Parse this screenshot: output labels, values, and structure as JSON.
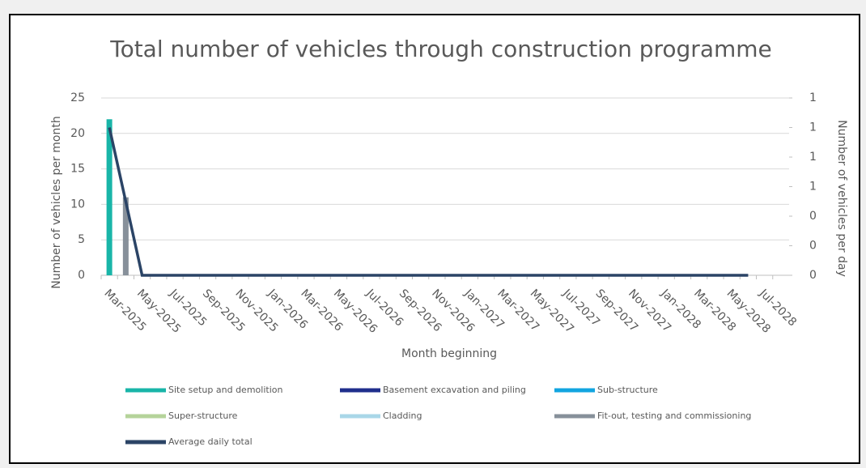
{
  "chart_data": {
    "type": "bar-line",
    "title": "Total number of vehicles through construction programme",
    "y_label": "Number of vehicles per month",
    "y2_label": "Number of vehicles per day",
    "x_label": "Month beginning",
    "categories": [
      "Mar-2025",
      null,
      "May-2025",
      null,
      "Jul-2025",
      null,
      "Sep-2025",
      null,
      "Nov-2025",
      null,
      "Jan-2026",
      null,
      "Mar-2026",
      null,
      "May-2026",
      null,
      "Jul-2026",
      null,
      "Sep-2026",
      null,
      "Nov-2026",
      null,
      "Jan-2027",
      null,
      "Mar-2027",
      null,
      "May-2027",
      null,
      "Jul-2027",
      null,
      "Sep-2027",
      null,
      "Nov-2027",
      null,
      "Jan-2028",
      null,
      "Mar-2028",
      null,
      "May-2028",
      null,
      "Jul-2028",
      null
    ],
    "ylim": [
      0,
      25
    ],
    "yticks": [
      0,
      5,
      10,
      15,
      20,
      25
    ],
    "y2lim": [
      0,
      1.2
    ],
    "y2ticks": [
      0,
      {
        "value": 0.2,
        "label": "0"
      },
      {
        "value": 0.4,
        "label": "0"
      },
      {
        "value": 0.6,
        "label": "1"
      },
      {
        "value": 0.8,
        "label": "1"
      },
      {
        "value": 1.0,
        "label": "1"
      },
      {
        "value": 1.2,
        "label": "1"
      }
    ],
    "grid": true,
    "series": [
      {
        "name": "Site setup and demolition",
        "color": "#19b5a8",
        "kind": "bar",
        "values": [
          22,
          0,
          0,
          0,
          0,
          0,
          0,
          0,
          0,
          0,
          0,
          0,
          0,
          0,
          0,
          0,
          0,
          0,
          0,
          0,
          0,
          0,
          0,
          0,
          0,
          0,
          0,
          0,
          0,
          0,
          0,
          0,
          0,
          0,
          0,
          0,
          0,
          0,
          0,
          0,
          0,
          0
        ]
      },
      {
        "name": "Basement excavation and piling",
        "color": "#1f2e8c",
        "kind": "bar",
        "values": [
          0,
          0,
          0,
          0,
          0,
          0,
          0,
          0,
          0,
          0,
          0,
          0,
          0,
          0,
          0,
          0,
          0,
          0,
          0,
          0,
          0,
          0,
          0,
          0,
          0,
          0,
          0,
          0,
          0,
          0,
          0,
          0,
          0,
          0,
          0,
          0,
          0,
          0,
          0,
          0,
          0,
          0
        ]
      },
      {
        "name": "Sub-structure",
        "color": "#12a5e0",
        "kind": "bar",
        "values": [
          0,
          0,
          0,
          0,
          0,
          0,
          0,
          0,
          0,
          0,
          0,
          0,
          0,
          0,
          0,
          0,
          0,
          0,
          0,
          0,
          0,
          0,
          0,
          0,
          0,
          0,
          0,
          0,
          0,
          0,
          0,
          0,
          0,
          0,
          0,
          0,
          0,
          0,
          0,
          0,
          0,
          0
        ]
      },
      {
        "name": "Super-structure",
        "color": "#b5d39a",
        "kind": "bar",
        "values": [
          0,
          0,
          0,
          0,
          0,
          0,
          0,
          0,
          0,
          0,
          0,
          0,
          0,
          0,
          0,
          0,
          0,
          0,
          0,
          0,
          0,
          0,
          0,
          0,
          0,
          0,
          0,
          0,
          0,
          0,
          0,
          0,
          0,
          0,
          0,
          0,
          0,
          0,
          0,
          0,
          0,
          0
        ]
      },
      {
        "name": "Cladding",
        "color": "#a9d7e8",
        "kind": "bar",
        "values": [
          0,
          0,
          0,
          0,
          0,
          0,
          0,
          0,
          0,
          0,
          0,
          0,
          0,
          0,
          0,
          0,
          0,
          0,
          0,
          0,
          0,
          0,
          0,
          0,
          0,
          0,
          0,
          0,
          0,
          0,
          0,
          0,
          0,
          0,
          0,
          0,
          0,
          0,
          0,
          0,
          0,
          0
        ]
      },
      {
        "name": "Fit-out, testing and commissioning",
        "color": "#87909a",
        "kind": "bar",
        "values": [
          0,
          11,
          0,
          0,
          0,
          0,
          0,
          0,
          0,
          0,
          0,
          0,
          0,
          0,
          0,
          0,
          0,
          0,
          0,
          0,
          0,
          0,
          0,
          0,
          0,
          0,
          0,
          0,
          0,
          0,
          0,
          0,
          0,
          0,
          0,
          0,
          0,
          0,
          0,
          0,
          0,
          0
        ]
      },
      {
        "name": "Average daily total",
        "color": "#2b4466",
        "kind": "line",
        "axis": "y2",
        "values": [
          1.0,
          0.5,
          0,
          0,
          0,
          0,
          0,
          0,
          0,
          0,
          0,
          0,
          0,
          0,
          0,
          0,
          0,
          0,
          0,
          0,
          0,
          0,
          0,
          0,
          0,
          0,
          0,
          0,
          0,
          0,
          0,
          0,
          0,
          0,
          0,
          0,
          0,
          0,
          0,
          0,
          null,
          null
        ]
      }
    ]
  }
}
